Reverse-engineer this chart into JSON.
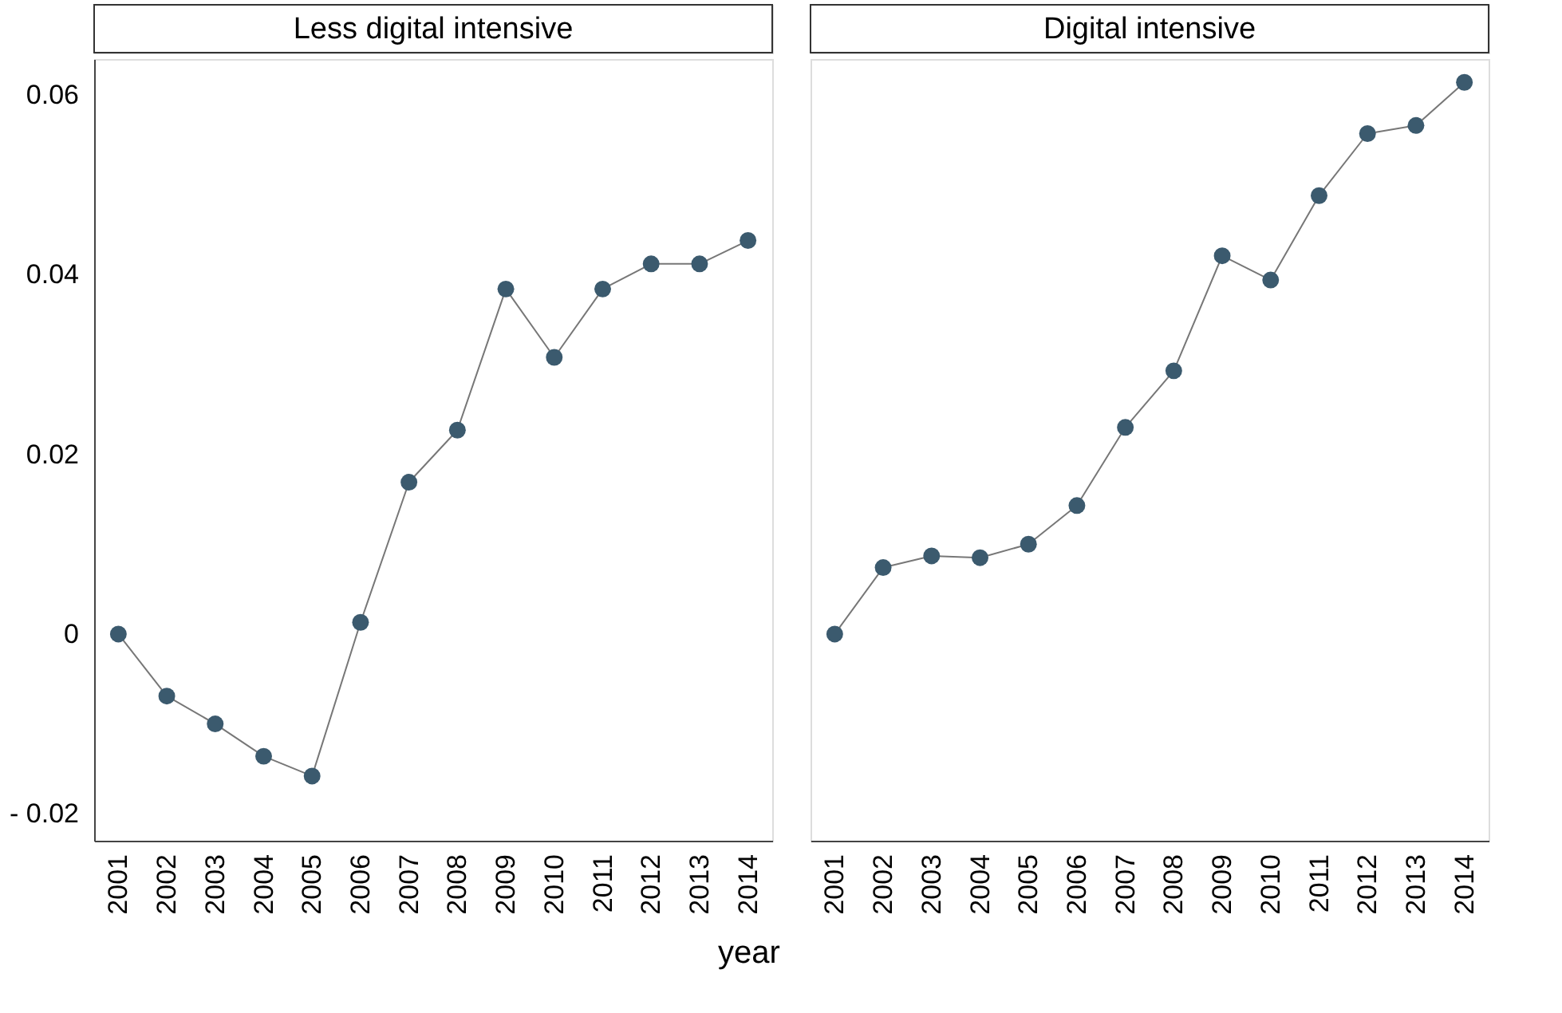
{
  "chart_data": [
    {
      "type": "line",
      "title": "Less digital intensive",
      "xlabel": "year",
      "categories": [
        "2001",
        "2002",
        "2003",
        "2004",
        "2005",
        "2006",
        "2007",
        "2008",
        "2009",
        "2010",
        "2011",
        "2012",
        "2013",
        "2014"
      ],
      "series": [
        {
          "color": "#3b5a6e",
          "values": [
            0,
            -0.0069,
            -0.01,
            -0.0136,
            -0.0158,
            0.0013,
            0.0169,
            0.0227,
            0.0384,
            0.0308,
            0.0384,
            0.0412,
            0.0412,
            0.0438
          ]
        }
      ],
      "ylim": [
        -0.023,
        0.064
      ],
      "yticks": [
        {
          "value": -0.02,
          "label": "- 0.02"
        },
        0,
        0.02,
        0.04,
        0.06
      ],
      "marker": "circle",
      "line_style": "solid",
      "grid": false
    },
    {
      "type": "line",
      "title": "Digital intensive",
      "categories": [
        "2001",
        "2002",
        "2003",
        "2004",
        "2005",
        "2006",
        "2007",
        "2008",
        "2009",
        "2010",
        "2011",
        "2012",
        "2013",
        "2014"
      ],
      "series": [
        {
          "color": "#3b5a6e",
          "values": [
            0,
            0.0074,
            0.0087,
            0.0085,
            0.01,
            0.0143,
            0.023,
            0.0293,
            0.0421,
            0.0394,
            0.0488,
            0.0557,
            0.0566,
            0.0614
          ]
        }
      ],
      "ylim": [
        -0.023,
        0.064
      ],
      "tick_labels": "x",
      "marker": "circle",
      "line_style": "solid",
      "grid": false
    }
  ]
}
